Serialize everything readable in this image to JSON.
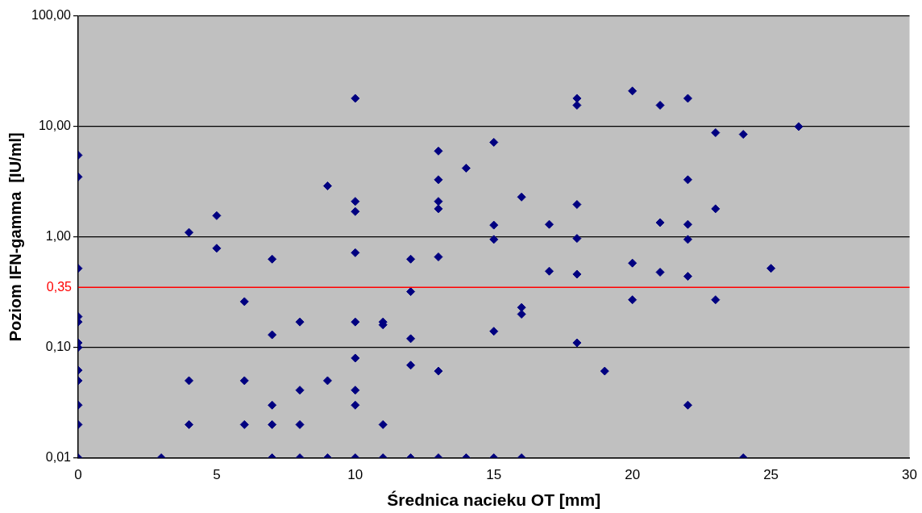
{
  "chart_data": {
    "type": "scatter",
    "xlabel": "Średnica nacieku OT [mm]",
    "ylabel": "Poziom IFN-gamma  [IU/ml]",
    "x": [
      0,
      0,
      0,
      0,
      0,
      0,
      0,
      0,
      0,
      0,
      0,
      0,
      3,
      4,
      4,
      4,
      5,
      5,
      6,
      6,
      6,
      7,
      7,
      7,
      7,
      7,
      8,
      8,
      8,
      8,
      9,
      9,
      9,
      10,
      10,
      10,
      10,
      10,
      10,
      10,
      10,
      10,
      11,
      11,
      11,
      11,
      12,
      12,
      12,
      12,
      12,
      13,
      13,
      13,
      13,
      13,
      13,
      13,
      14,
      14,
      15,
      15,
      15,
      15,
      15,
      16,
      16,
      16,
      16,
      17,
      17,
      18,
      18,
      18,
      18,
      18,
      18,
      19,
      20,
      20,
      20,
      21,
      21,
      21,
      22,
      22,
      22,
      22,
      22,
      22,
      23,
      23,
      23,
      24,
      24,
      25,
      26
    ],
    "series": [
      {
        "color": "#000080",
        "values": [
          5.5,
          3.5,
          0.52,
          0.19,
          0.17,
          0.11,
          0.1,
          0.062,
          0.05,
          0.03,
          0.02,
          0.01,
          0.01,
          1.1,
          0.05,
          0.02,
          1.56,
          0.79,
          0.26,
          0.05,
          0.02,
          0.63,
          0.13,
          0.03,
          0.02,
          0.01,
          0.17,
          0.041,
          0.02,
          0.01,
          2.9,
          0.05,
          0.01,
          18,
          2.1,
          1.7,
          0.72,
          0.17,
          0.08,
          0.041,
          0.03,
          0.01,
          0.17,
          0.16,
          0.02,
          0.01,
          0.63,
          0.32,
          0.12,
          0.069,
          0.01,
          6,
          3.3,
          2.1,
          1.8,
          0.66,
          0.061,
          0.01,
          4.2,
          0.01,
          7.2,
          1.28,
          0.95,
          0.14,
          0.01,
          2.3,
          0.23,
          0.2,
          0.01,
          1.3,
          0.49,
          18,
          15.6,
          1.97,
          0.97,
          0.46,
          0.11,
          0.061,
          21,
          0.58,
          0.27,
          15.6,
          1.35,
          0.48,
          18,
          3.3,
          1.3,
          0.95,
          0.44,
          0.03,
          8.8,
          1.8,
          0.27,
          8.5,
          0.01,
          0.52,
          10
        ]
      }
    ],
    "xlim": [
      0,
      30
    ],
    "xticks": [
      0,
      5,
      10,
      15,
      20,
      25,
      30
    ],
    "ylim": [
      0.01,
      100
    ],
    "yticks": [
      {
        "value": 0.01,
        "label": "0,01"
      },
      {
        "value": 0.1,
        "label": "0,10"
      },
      {
        "value": 1,
        "label": "1,00"
      },
      {
        "value": 10,
        "label": "10,00"
      },
      {
        "value": 100,
        "label": "100,00"
      }
    ],
    "log": "y",
    "grid": "y",
    "marker": "diamond",
    "legend": false,
    "ref_lines": [
      {
        "axis": "y",
        "value": 0.35,
        "label": "0,35",
        "color": "#ff0000"
      }
    ]
  }
}
